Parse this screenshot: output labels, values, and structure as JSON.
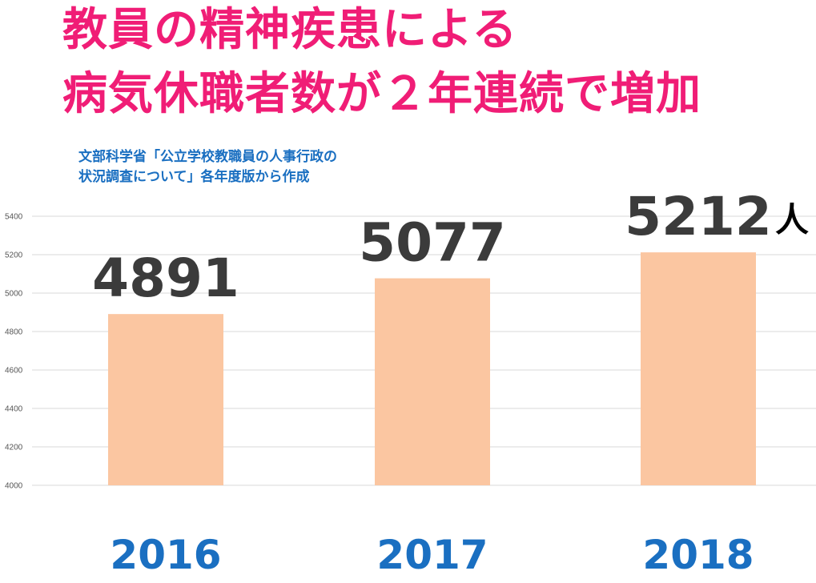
{
  "title": {
    "line1": "教員の精神疾患による",
    "line2": "病気休職者数が２年連続で増加"
  },
  "source": {
    "line1": "文部科学省「公立学校教職員の人事行政の",
    "line2": "状況調査について」各年度版から作成"
  },
  "chart_data": {
    "type": "bar",
    "categories": [
      "2016",
      "2017",
      "2018"
    ],
    "values": [
      4891,
      5077,
      5212
    ],
    "data_labels": [
      "4891",
      "5077",
      "5212"
    ],
    "unit_label": "人",
    "ylim": [
      4000,
      5400
    ],
    "yticks": [
      4000,
      4200,
      4400,
      4600,
      4800,
      5000,
      5200,
      5400
    ],
    "grid": true,
    "legend": "none",
    "bar_color": "#fbc6a1"
  },
  "colors": {
    "title": "#f01d76",
    "source": "#1a6fc1",
    "category_label": "#1a6fc1",
    "data_label": "#3b3b3b",
    "gridline": "#d9d9d9"
  }
}
